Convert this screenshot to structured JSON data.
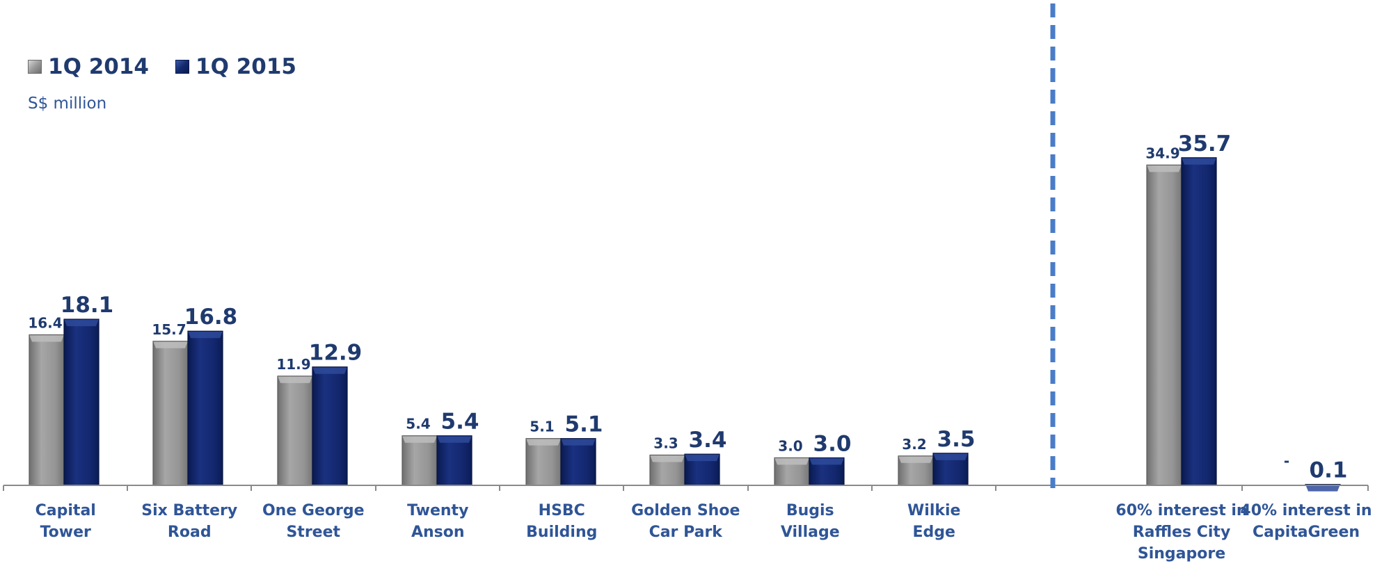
{
  "chart_data": {
    "type": "bar",
    "unit_label": "S$ million",
    "legend": [
      "1Q 2014",
      "1Q 2015"
    ],
    "categories": [
      [
        "Capital",
        "Tower"
      ],
      [
        "Six Battery",
        "Road"
      ],
      [
        "One George",
        "Street"
      ],
      [
        "Twenty",
        "Anson"
      ],
      [
        "HSBC",
        "Building"
      ],
      [
        "Golden Shoe",
        "Car Park"
      ],
      [
        "Bugis",
        "Village"
      ],
      [
        "Wilkie",
        "Edge"
      ],
      [
        "60% interest in",
        "Raffles City",
        "Singapore"
      ],
      [
        "40% interest in",
        "CapitaGreen"
      ]
    ],
    "series": [
      {
        "name": "1Q 2014",
        "values": [
          16.4,
          15.7,
          11.9,
          5.4,
          5.1,
          3.3,
          3.0,
          3.2,
          34.9,
          0
        ],
        "labels": [
          "16.4",
          "15.7",
          "11.9",
          "5.4",
          "5.1",
          "3.3",
          "3.0",
          "3.2",
          "34.9",
          "-"
        ]
      },
      {
        "name": "1Q 2015",
        "values": [
          18.1,
          16.8,
          12.9,
          5.4,
          5.1,
          3.4,
          3.0,
          3.5,
          35.7,
          0.1
        ],
        "labels": [
          "18.1",
          "16.8",
          "12.9",
          "5.4",
          "5.1",
          "3.4",
          "3.0",
          "3.5",
          "35.7",
          "0.1"
        ]
      }
    ],
    "colors": {
      "series1": "#8c8c8c",
      "series2": "#0f2566",
      "text": "#1f3a6e",
      "divider": "#4a7cc7"
    },
    "grid": false,
    "legend_position": "top-left"
  }
}
